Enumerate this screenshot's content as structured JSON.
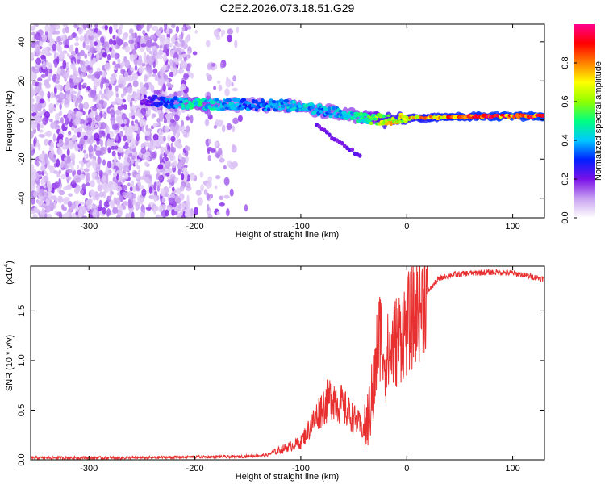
{
  "title": "C2E2.2026.073.18.51.G29",
  "chart_data": [
    {
      "type": "heatmap",
      "name": "spectrogram",
      "xlabel": "Height of straight line (km)",
      "ylabel": "Frequency (Hz)",
      "xlim": [
        -355,
        130
      ],
      "ylim": [
        -50,
        49
      ],
      "xticks": [
        -300,
        -200,
        -100,
        0,
        100
      ],
      "yticks": [
        -40,
        -20,
        0,
        20,
        40
      ],
      "colorbar": {
        "label": "Normalized spectral amplitude",
        "range": [
          0,
          1
        ],
        "ticks": [
          0.0,
          0.2,
          0.4,
          0.6,
          0.8
        ],
        "stops": [
          "#ffffff",
          "#c8a0f0",
          "#7a10e8",
          "#0020ff",
          "#00c8ff",
          "#00ff80",
          "#90ff00",
          "#ffff00",
          "#ff8000",
          "#ff0000",
          "#ff0090"
        ]
      },
      "features": {
        "noise_region_km": [
          -355,
          -150
        ],
        "noise_gap_km": [
          -205,
          -190
        ],
        "signal_track": [
          {
            "x": -250,
            "freq": 10,
            "amp": 0.2
          },
          {
            "x": -200,
            "freq": 8,
            "amp": 0.5
          },
          {
            "x": -150,
            "freq": 8,
            "amp": 0.35
          },
          {
            "x": -100,
            "freq": 7,
            "amp": 0.45
          },
          {
            "x": -80,
            "freq": 5,
            "amp": 0.4
          },
          {
            "x": -60,
            "freq": 3,
            "amp": 0.45
          },
          {
            "x": -40,
            "freq": 1,
            "amp": 0.5
          },
          {
            "x": -20,
            "freq": 0,
            "amp": 0.7
          },
          {
            "x": 0,
            "freq": 1,
            "amp": 0.75
          },
          {
            "x": 40,
            "freq": 1.5,
            "amp": 0.85
          },
          {
            "x": 80,
            "freq": 2,
            "amp": 0.9
          },
          {
            "x": 130,
            "freq": 2,
            "amp": 0.9
          }
        ]
      }
    },
    {
      "type": "line",
      "name": "snr",
      "xlabel": "Height of straight line (km)",
      "ylabel": "SNR (10 * v/v)",
      "scale_label": "(x10",
      "scale_exponent": "4",
      "xlim": [
        -355,
        130
      ],
      "ylim": [
        0,
        1.95
      ],
      "xticks": [
        -300,
        -200,
        -100,
        0,
        100
      ],
      "yticks": [
        0.0,
        0.5,
        1.0,
        1.5
      ],
      "color": "#e83030",
      "series": [
        {
          "name": "SNR",
          "x": [
            -355,
            -300,
            -250,
            -200,
            -160,
            -130,
            -100,
            -90,
            -80,
            -70,
            -60,
            -50,
            -40,
            -35,
            -30,
            -28,
            -25,
            -20,
            -15,
            -10,
            0,
            10,
            20,
            30,
            40,
            60,
            80,
            100,
            120,
            130
          ],
          "y": [
            0.02,
            0.02,
            0.02,
            0.03,
            0.03,
            0.05,
            0.15,
            0.3,
            0.45,
            0.55,
            0.45,
            0.35,
            0.25,
            0.5,
            0.8,
            1.1,
            1.3,
            1.0,
            1.1,
            1.2,
            1.35,
            1.5,
            1.7,
            1.82,
            1.86,
            1.88,
            1.89,
            1.88,
            1.84,
            1.82
          ]
        }
      ]
    }
  ]
}
